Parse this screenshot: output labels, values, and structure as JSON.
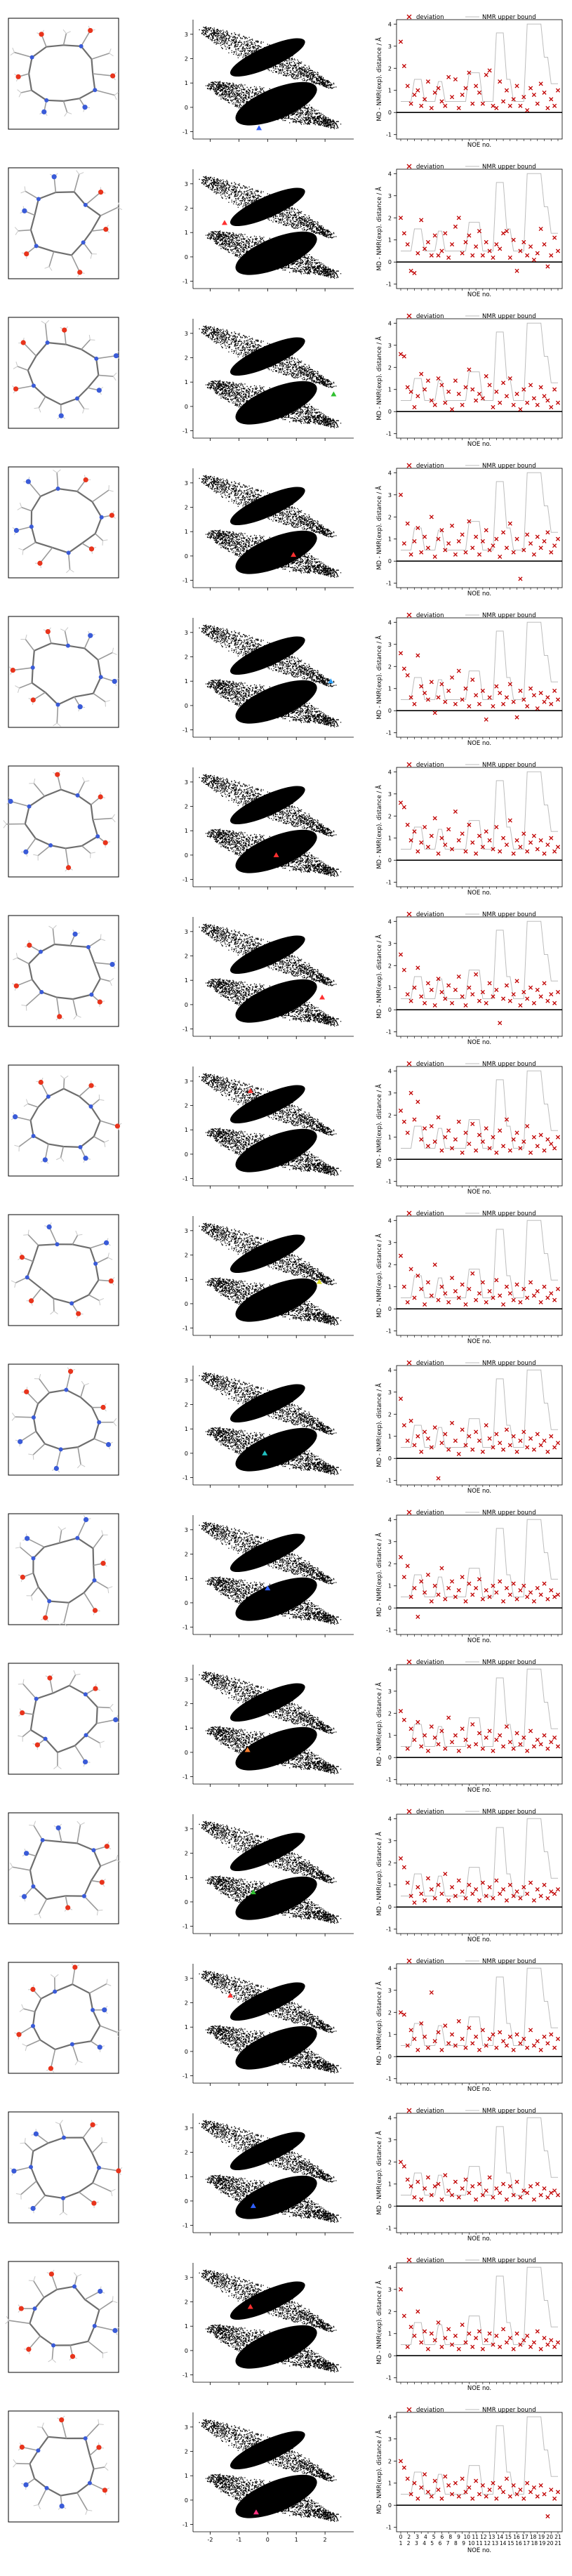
{
  "figure": {
    "rows": 17,
    "panels_per_row": [
      "molecule-structure",
      "free-energy-map",
      "noe-deviation-plot"
    ]
  },
  "chart_data": [
    {
      "type": "scatter",
      "description_role": "free-energy-map",
      "xlim": [
        -2.6,
        3.0
      ],
      "ylim": [
        -1.3,
        3.6
      ],
      "xticks": [
        -2,
        -1,
        0,
        1,
        2
      ],
      "yticks": [
        -1,
        0,
        1,
        2,
        3
      ],
      "xlabel": "",
      "ylabel": "",
      "point_cloud": "dense black samples forming two diagonal lobes",
      "markers": [
        {
          "row": 1,
          "x": -0.3,
          "y": -0.85,
          "color": "#3060ff"
        },
        {
          "row": 2,
          "x": -1.5,
          "y": 1.4,
          "color": "#ff3030"
        },
        {
          "row": 3,
          "x": 2.3,
          "y": 0.5,
          "color": "#30c030"
        },
        {
          "row": 4,
          "x": 0.9,
          "y": 0.05,
          "color": "#ff3030"
        },
        {
          "row": 5,
          "x": 2.2,
          "y": 1.0,
          "color": "#2a9df4"
        },
        {
          "row": 6,
          "x": 0.3,
          "y": 0.0,
          "color": "#ff3030"
        },
        {
          "row": 7,
          "x": 1.9,
          "y": 0.3,
          "color": "#ff3030"
        },
        {
          "row": 8,
          "x": -0.6,
          "y": 2.6,
          "color": "#ff3030"
        },
        {
          "row": 9,
          "x": 1.8,
          "y": 0.9,
          "color": "#e0e020"
        },
        {
          "row": 10,
          "x": -0.1,
          "y": 0.0,
          "color": "#20c0c0"
        },
        {
          "row": 11,
          "x": 0.0,
          "y": 0.6,
          "color": "#3060ff"
        },
        {
          "row": 12,
          "x": -0.7,
          "y": 0.1,
          "color": "#ff8030"
        },
        {
          "row": 13,
          "x": -0.5,
          "y": 0.4,
          "color": "#30c030"
        },
        {
          "row": 14,
          "x": -1.3,
          "y": 2.3,
          "color": "#ff3030"
        },
        {
          "row": 15,
          "x": -0.5,
          "y": -0.2,
          "color": "#3060ff"
        },
        {
          "row": 16,
          "x": -0.6,
          "y": 1.8,
          "color": "#ff3030"
        },
        {
          "row": 17,
          "x": -0.4,
          "y": -0.5,
          "color": "#ff3080"
        }
      ]
    },
    {
      "type": "scatter",
      "description_role": "noe-deviation",
      "xlabel": "NOE no.",
      "ylabel": "MD - NMR(exp). distance / Å",
      "ylim": [
        -1.2,
        4.2
      ],
      "yticks": [
        -1,
        0,
        1,
        2,
        3,
        4
      ],
      "legend": [
        "deviation",
        "NMR upper bound"
      ],
      "legend_placement": "top",
      "xtick_labels_top": [
        "0",
        "2",
        "3",
        "4",
        "5",
        "6",
        "8",
        "9",
        "10",
        "11",
        "12",
        "13",
        "14",
        "15",
        "16",
        "17",
        "18",
        "19",
        "20",
        "21"
      ],
      "xtick_labels_bottom": [
        "1",
        "2",
        "3",
        "4",
        "5",
        "6",
        "7",
        "8",
        "9",
        "10",
        "11",
        "12",
        "13",
        "14",
        "15",
        "16",
        "17",
        "18",
        "19",
        "20",
        "21"
      ],
      "upper_bound": [
        0.5,
        0.5,
        0.5,
        0.5,
        1.5,
        1.5,
        1.5,
        0.5,
        0.5,
        0.5,
        0.5,
        1.4,
        1.4,
        0.5,
        0.5,
        0.5,
        0.5,
        0.5,
        0.5,
        0.5,
        1.8,
        1.8,
        1.8,
        1.8,
        0.5,
        0.5,
        0.5,
        0.5,
        3.6,
        3.6,
        3.6,
        1.5,
        1.5,
        0.5,
        0.5,
        0.5,
        0.5,
        4.0,
        4.0,
        4.0,
        4.0,
        4.0,
        2.5,
        2.5,
        1.3,
        1.3,
        1.3
      ],
      "deviations": [
        [
          3.2,
          2.1,
          1.2,
          0.4,
          0.8,
          1.0,
          0.3,
          0.6,
          1.4,
          0.2,
          0.9,
          1.1,
          0.5,
          0.3,
          1.6,
          0.7,
          1.5,
          0.2,
          0.8,
          1.1,
          1.8,
          0.4,
          1.2,
          0.9,
          0.4,
          1.7,
          1.9,
          0.3,
          0.2,
          1.4,
          0.5,
          1.0,
          0.3,
          0.6,
          1.2,
          0.3,
          0.7,
          0.1,
          1.1,
          0.8,
          0.4,
          1.3,
          0.9,
          0.2,
          0.6,
          0.3,
          1.0
        ],
        [
          2.0,
          1.3,
          0.8,
          -0.4,
          -0.5,
          0.4,
          1.9,
          0.6,
          0.9,
          0.3,
          1.2,
          0.3,
          0.5,
          1.3,
          0.2,
          0.8,
          1.6,
          2.0,
          0.4,
          0.9,
          1.2,
          0.3,
          0.7,
          1.4,
          0.3,
          0.9,
          0.5,
          0.2,
          0.8,
          0.6,
          1.3,
          1.4,
          0.2,
          1.0,
          -0.4,
          0.5,
          0.9,
          0.3,
          0.7,
          0.1,
          0.4,
          1.5,
          0.8,
          -0.2,
          0.3,
          1.1,
          0.5
        ],
        [
          2.6,
          2.5,
          1.1,
          0.9,
          0.2,
          0.7,
          1.7,
          1.0,
          1.4,
          0.5,
          0.3,
          1.5,
          1.2,
          0.4,
          0.9,
          0.1,
          1.4,
          0.8,
          0.3,
          1.1,
          1.9,
          1.0,
          0.5,
          0.8,
          0.6,
          1.6,
          1.2,
          0.2,
          0.9,
          0.4,
          1.3,
          0.7,
          1.5,
          0.3,
          0.8,
          0.1,
          1.0,
          0.4,
          1.2,
          0.6,
          0.3,
          1.1,
          0.7,
          0.5,
          0.2,
          1.0,
          0.4
        ],
        [
          3.0,
          0.8,
          1.7,
          0.3,
          0.9,
          1.5,
          0.4,
          1.1,
          0.6,
          2.0,
          0.2,
          1.0,
          1.4,
          0.5,
          0.8,
          1.6,
          0.3,
          0.9,
          1.2,
          0.4,
          1.8,
          0.6,
          1.1,
          0.3,
          0.9,
          1.4,
          0.5,
          0.7,
          1.0,
          0.2,
          1.3,
          0.6,
          1.7,
          0.4,
          1.0,
          -0.8,
          0.5,
          1.2,
          0.8,
          0.3,
          1.1,
          0.6,
          0.9,
          1.3,
          0.4,
          0.7,
          1.0
        ],
        [
          2.6,
          1.9,
          1.6,
          0.6,
          0.3,
          2.5,
          1.1,
          0.8,
          0.5,
          1.3,
          -0.1,
          0.6,
          1.2,
          0.4,
          0.9,
          1.5,
          0.3,
          1.8,
          0.5,
          1.0,
          0.2,
          1.4,
          0.7,
          0.3,
          0.9,
          -0.4,
          0.6,
          0.2,
          1.1,
          0.8,
          0.3,
          0.6,
          1.2,
          0.4,
          -0.3,
          0.9,
          0.5,
          0.2,
          1.0,
          0.7,
          0.1,
          0.8,
          0.4,
          0.6,
          0.3,
          0.9,
          0.5
        ],
        [
          2.6,
          2.4,
          1.6,
          0.9,
          1.3,
          0.4,
          0.8,
          1.5,
          0.6,
          1.1,
          1.9,
          0.3,
          1.0,
          0.7,
          1.4,
          0.5,
          2.2,
          0.9,
          1.2,
          0.4,
          1.6,
          0.8,
          0.3,
          1.1,
          0.6,
          1.3,
          0.9,
          0.5,
          1.5,
          0.4,
          1.0,
          0.7,
          1.8,
          0.3,
          0.9,
          0.6,
          1.2,
          0.4,
          0.8,
          1.1,
          0.5,
          0.9,
          0.3,
          0.7,
          1.0,
          0.4,
          0.6
        ],
        [
          2.5,
          1.8,
          0.7,
          0.4,
          1.0,
          1.9,
          0.6,
          0.3,
          1.2,
          0.9,
          0.2,
          1.4,
          0.8,
          0.5,
          1.1,
          0.3,
          0.9,
          1.5,
          0.6,
          0.2,
          1.0,
          0.7,
          1.6,
          0.4,
          0.8,
          0.3,
          1.2,
          0.6,
          0.9,
          -0.6,
          0.5,
          1.1,
          0.4,
          0.7,
          1.3,
          0.2,
          0.8,
          0.5,
          1.0,
          0.3,
          0.9,
          0.6,
          1.2,
          0.4,
          0.7,
          0.3,
          0.8
        ],
        [
          2.2,
          1.7,
          1.2,
          3.0,
          1.8,
          2.6,
          0.9,
          1.4,
          0.6,
          1.5,
          0.8,
          1.9,
          0.4,
          1.0,
          1.3,
          0.5,
          0.9,
          1.7,
          0.3,
          1.2,
          0.7,
          1.6,
          0.4,
          1.1,
          0.8,
          1.4,
          0.5,
          1.0,
          0.3,
          1.3,
          0.6,
          1.8,
          0.4,
          0.9,
          1.2,
          0.5,
          0.8,
          1.5,
          0.3,
          1.0,
          0.6,
          1.1,
          0.4,
          0.9,
          0.7,
          0.5,
          1.0
        ],
        [
          2.4,
          1.0,
          0.3,
          1.8,
          0.5,
          1.5,
          0.9,
          0.2,
          1.2,
          0.6,
          2.0,
          0.4,
          1.0,
          0.7,
          0.3,
          1.4,
          0.8,
          0.5,
          1.1,
          0.2,
          0.9,
          1.6,
          0.4,
          0.7,
          1.2,
          0.3,
          0.8,
          0.5,
          1.3,
          0.6,
          0.2,
          1.0,
          0.7,
          0.4,
          1.1,
          0.3,
          0.9,
          0.5,
          1.2,
          0.6,
          0.8,
          0.3,
          1.0,
          0.5,
          0.7,
          0.4,
          0.9
        ],
        [
          2.7,
          1.5,
          0.8,
          1.7,
          0.6,
          1.0,
          0.3,
          1.2,
          0.9,
          0.5,
          1.4,
          -0.9,
          0.7,
          1.1,
          0.4,
          1.6,
          0.8,
          0.2,
          1.3,
          0.6,
          1.0,
          0.4,
          1.2,
          0.8,
          0.3,
          1.5,
          0.9,
          0.5,
          1.1,
          0.7,
          0.4,
          1.3,
          0.6,
          1.0,
          0.3,
          0.8,
          1.2,
          0.5,
          0.9,
          0.4,
          1.1,
          0.6,
          0.8,
          0.3,
          1.0,
          0.5,
          0.7
        ],
        [
          2.3,
          1.4,
          1.9,
          0.5,
          0.9,
          -0.4,
          1.2,
          0.7,
          1.5,
          0.3,
          1.0,
          0.6,
          1.8,
          0.4,
          0.9,
          1.2,
          0.5,
          0.8,
          1.4,
          0.3,
          1.1,
          0.6,
          0.9,
          1.3,
          0.4,
          0.8,
          0.5,
          1.0,
          0.7,
          1.2,
          0.3,
          0.9,
          0.6,
          1.1,
          0.4,
          0.8,
          1.0,
          0.5,
          0.7,
          0.3,
          0.9,
          0.6,
          1.1,
          0.4,
          0.8,
          0.5,
          0.6
        ],
        [
          2.1,
          1.7,
          0.4,
          1.3,
          0.8,
          1.6,
          0.5,
          1.0,
          0.3,
          1.4,
          0.9,
          0.6,
          1.2,
          0.4,
          1.8,
          0.7,
          1.0,
          0.3,
          1.3,
          0.8,
          0.5,
          1.5,
          0.6,
          1.1,
          0.4,
          0.9,
          1.2,
          0.3,
          0.8,
          1.0,
          0.5,
          1.4,
          0.7,
          0.4,
          1.1,
          0.6,
          0.9,
          0.3,
          1.2,
          0.5,
          0.8,
          0.6,
          1.0,
          0.4,
          0.7,
          0.9,
          0.5
        ],
        [
          2.2,
          1.8,
          1.1,
          0.5,
          0.2,
          0.9,
          0.6,
          0.3,
          1.3,
          0.8,
          0.4,
          1.0,
          0.6,
          1.5,
          0.3,
          0.9,
          0.5,
          1.2,
          0.7,
          0.4,
          1.0,
          0.6,
          0.8,
          0.3,
          1.1,
          0.5,
          0.9,
          0.4,
          1.2,
          0.6,
          0.8,
          0.3,
          1.0,
          0.5,
          0.7,
          0.4,
          0.9,
          0.6,
          1.1,
          0.3,
          0.8,
          0.5,
          1.0,
          0.4,
          0.7,
          0.6,
          0.8
        ],
        [
          2.0,
          1.9,
          0.5,
          1.2,
          0.8,
          0.3,
          1.5,
          0.9,
          0.4,
          2.9,
          0.7,
          1.1,
          0.3,
          1.4,
          0.6,
          1.0,
          0.5,
          1.6,
          0.8,
          0.4,
          1.3,
          0.6,
          0.9,
          0.3,
          1.2,
          0.5,
          0.8,
          1.0,
          0.4,
          1.1,
          0.7,
          0.5,
          0.9,
          0.3,
          1.0,
          0.6,
          0.8,
          0.4,
          1.2,
          0.5,
          0.7,
          0.3,
          0.9,
          0.6,
          1.0,
          0.4,
          0.8
        ],
        [
          2.0,
          1.8,
          1.2,
          0.9,
          0.4,
          1.1,
          0.3,
          0.8,
          1.3,
          0.5,
          0.9,
          1.0,
          0.3,
          1.4,
          0.7,
          0.5,
          1.1,
          0.4,
          0.8,
          1.2,
          0.6,
          0.9,
          0.3,
          1.0,
          0.5,
          0.7,
          1.3,
          0.4,
          0.8,
          0.6,
          1.0,
          0.3,
          0.9,
          0.5,
          1.1,
          0.4,
          0.7,
          0.6,
          0.9,
          0.3,
          1.0,
          0.5,
          0.8,
          0.4,
          0.6,
          0.7,
          0.5
        ],
        [
          3.0,
          1.8,
          0.4,
          1.3,
          0.9,
          2.0,
          0.6,
          1.1,
          0.3,
          1.0,
          0.7,
          1.5,
          0.4,
          0.8,
          1.2,
          0.5,
          0.9,
          0.3,
          1.4,
          0.6,
          1.0,
          0.4,
          0.8,
          1.1,
          0.3,
          0.7,
          1.0,
          0.5,
          0.9,
          0.4,
          1.2,
          0.6,
          0.8,
          0.3,
          1.0,
          0.5,
          0.7,
          0.9,
          0.4,
          0.6,
          1.1,
          0.3,
          0.8,
          0.5,
          0.7,
          0.4,
          0.6
        ],
        [
          2.0,
          1.7,
          1.2,
          0.5,
          1.0,
          0.3,
          0.8,
          1.4,
          0.6,
          0.4,
          1.1,
          0.7,
          0.3,
          1.3,
          0.9,
          0.5,
          1.0,
          0.4,
          1.2,
          0.6,
          0.8,
          0.3,
          1.1,
          0.5,
          0.9,
          0.4,
          0.7,
          1.0,
          0.3,
          0.8,
          0.6,
          1.2,
          0.4,
          0.9,
          0.5,
          0.7,
          0.3,
          1.0,
          0.6,
          0.8,
          0.4,
          0.9,
          0.5,
          -0.5,
          0.7,
          0.3,
          0.6
        ]
      ]
    }
  ]
}
